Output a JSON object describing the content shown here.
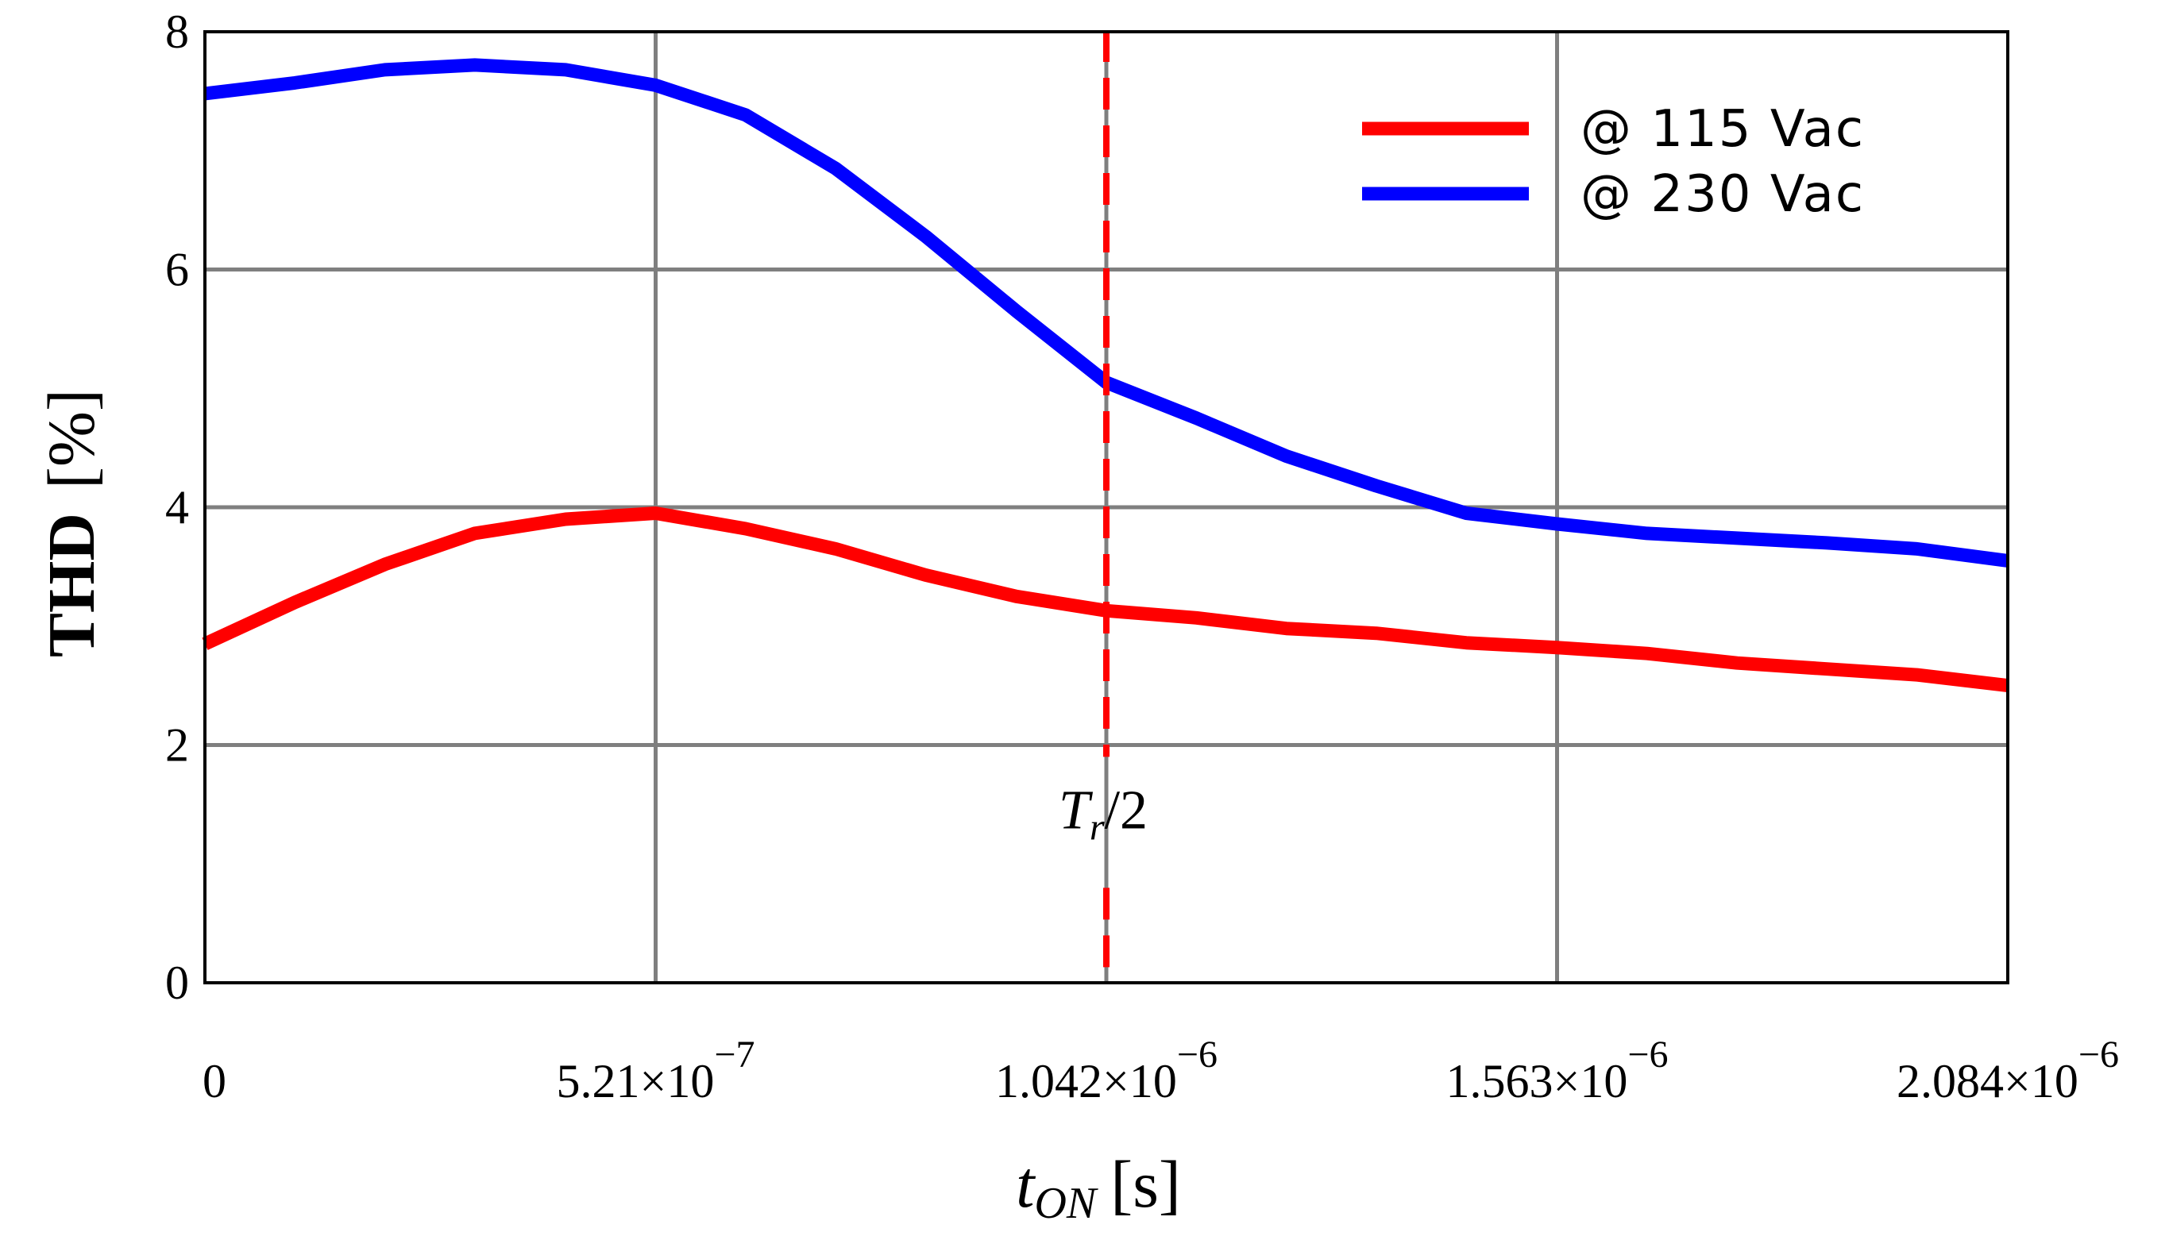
{
  "chart_data": {
    "type": "line",
    "title": "",
    "xlabel": "t",
    "xlabel_sub": "ON",
    "xlabel_unit": "[s]",
    "ylabel": "THD",
    "ylabel_unit": "[%]",
    "xlim": [
      0,
      2.084e-06
    ],
    "ylim": [
      0,
      8
    ],
    "x_ticks": [
      0,
      5.21e-07,
      1.042e-06,
      1.563e-06,
      2.084e-06
    ],
    "x_tick_labels": [
      {
        "mantissa": "0",
        "exp": ""
      },
      {
        "mantissa": "5.21×10",
        "exp": "−7"
      },
      {
        "mantissa": "1.042×10",
        "exp": "−6"
      },
      {
        "mantissa": "1.563×10",
        "exp": "−6"
      },
      {
        "mantissa": "2.084×10",
        "exp": "−6"
      }
    ],
    "y_ticks": [
      0,
      2,
      4,
      6,
      8
    ],
    "y_tick_labels": [
      "0",
      "2",
      "4",
      "6",
      "8"
    ],
    "grid": true,
    "legend_position": "top-right",
    "series": [
      {
        "name": "@ 115 Vac",
        "color": "#ff0000",
        "x": [
          0,
          1.04e-07,
          2.08e-07,
          3.12e-07,
          4.17e-07,
          5.21e-07,
          6.25e-07,
          7.29e-07,
          8.33e-07,
          9.38e-07,
          1.042e-06,
          1.146e-06,
          1.25e-06,
          1.354e-06,
          1.458e-06,
          1.563e-06,
          1.667e-06,
          1.771e-06,
          1.875e-06,
          1.979e-06,
          2.084e-06
        ],
        "values": [
          2.85,
          3.2,
          3.52,
          3.78,
          3.9,
          3.95,
          3.82,
          3.65,
          3.43,
          3.25,
          3.13,
          3.07,
          2.98,
          2.94,
          2.86,
          2.82,
          2.77,
          2.69,
          2.64,
          2.59,
          2.5
        ]
      },
      {
        "name": "@ 230 Vac",
        "color": "#0000ff",
        "x": [
          0,
          1.04e-07,
          2.08e-07,
          3.12e-07,
          4.17e-07,
          5.21e-07,
          6.25e-07,
          7.29e-07,
          8.33e-07,
          9.38e-07,
          1.042e-06,
          1.146e-06,
          1.25e-06,
          1.354e-06,
          1.458e-06,
          1.563e-06,
          1.667e-06,
          1.771e-06,
          1.875e-06,
          1.979e-06,
          2.084e-06
        ],
        "values": [
          7.48,
          7.57,
          7.68,
          7.72,
          7.68,
          7.55,
          7.3,
          6.85,
          6.28,
          5.65,
          5.05,
          4.75,
          4.43,
          4.18,
          3.95,
          3.86,
          3.78,
          3.74,
          3.7,
          3.65,
          3.55
        ]
      }
    ],
    "annotations": [
      {
        "type": "vline",
        "x": 1.042e-06,
        "color": "#ff0000",
        "style": "dashed",
        "label_main": "T",
        "label_sub": "r",
        "label_rest": "/2",
        "label_y": 1.3
      }
    ]
  }
}
